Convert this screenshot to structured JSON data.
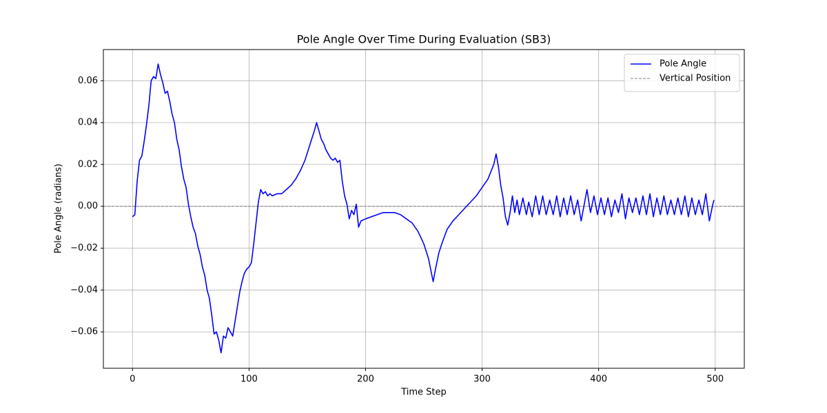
{
  "chart_data": {
    "type": "line",
    "title": "Pole Angle Over Time During Evaluation (SB3)",
    "x_label": "Time Step",
    "y_label": "Pole Angle (radians)",
    "x": [
      0,
      2,
      4,
      6,
      8,
      10,
      12,
      14,
      16,
      18,
      20,
      22,
      24,
      26,
      28,
      30,
      32,
      34,
      36,
      38,
      40,
      42,
      44,
      46,
      48,
      50,
      52,
      54,
      56,
      58,
      60,
      62,
      64,
      66,
      68,
      70,
      72,
      74,
      76,
      78,
      80,
      82,
      84,
      86,
      88,
      90,
      92,
      94,
      96,
      98,
      100,
      102,
      104,
      106,
      108,
      110,
      112,
      114,
      116,
      118,
      120,
      124,
      128,
      132,
      136,
      140,
      144,
      148,
      152,
      156,
      158,
      160,
      162,
      164,
      166,
      168,
      170,
      172,
      174,
      176,
      178,
      180,
      182,
      184,
      186,
      188,
      190,
      192,
      194,
      196,
      200,
      205,
      210,
      215,
      220,
      225,
      230,
      235,
      240,
      245,
      250,
      254,
      258,
      260,
      263,
      266,
      270,
      275,
      280,
      285,
      290,
      295,
      300,
      305,
      310,
      312,
      314,
      316,
      318,
      320,
      322,
      324,
      326,
      328,
      330,
      332,
      335,
      338,
      340,
      343,
      346,
      349,
      352,
      355,
      358,
      361,
      364,
      367,
      370,
      373,
      376,
      379,
      382,
      385,
      388,
      390,
      393,
      396,
      399,
      402,
      405,
      408,
      411,
      414,
      417,
      420,
      423,
      426,
      429,
      432,
      435,
      438,
      441,
      444,
      447,
      450,
      453,
      456,
      459,
      462,
      465,
      468,
      471,
      474,
      477,
      480,
      483,
      486,
      489,
      492,
      495,
      498,
      499
    ],
    "series": [
      {
        "name": "Pole Angle",
        "color": "#0000ff",
        "values": [
          -0.005,
          -0.004,
          0.012,
          0.022,
          0.024,
          0.031,
          0.039,
          0.048,
          0.06,
          0.062,
          0.061,
          0.068,
          0.063,
          0.059,
          0.054,
          0.055,
          0.05,
          0.044,
          0.04,
          0.032,
          0.027,
          0.019,
          0.013,
          0.009,
          0.001,
          -0.005,
          -0.01,
          -0.013,
          -0.019,
          -0.023,
          -0.029,
          -0.033,
          -0.04,
          -0.044,
          -0.052,
          -0.061,
          -0.06,
          -0.064,
          -0.07,
          -0.062,
          -0.063,
          -0.058,
          -0.06,
          -0.062,
          -0.055,
          -0.048,
          -0.041,
          -0.036,
          -0.032,
          -0.03,
          -0.029,
          -0.027,
          -0.018,
          -0.008,
          0.002,
          0.008,
          0.006,
          0.007,
          0.005,
          0.006,
          0.005,
          0.006,
          0.006,
          0.008,
          0.01,
          0.013,
          0.017,
          0.022,
          0.029,
          0.036,
          0.04,
          0.036,
          0.032,
          0.03,
          0.027,
          0.025,
          0.023,
          0.022,
          0.023,
          0.021,
          0.022,
          0.012,
          0.005,
          0.001,
          -0.006,
          -0.002,
          -0.004,
          0.001,
          -0.01,
          -0.007,
          -0.006,
          -0.005,
          -0.004,
          -0.003,
          -0.003,
          -0.003,
          -0.004,
          -0.006,
          -0.008,
          -0.012,
          -0.018,
          -0.025,
          -0.036,
          -0.03,
          -0.022,
          -0.017,
          -0.011,
          -0.007,
          -0.004,
          -0.001,
          0.002,
          0.005,
          0.009,
          0.013,
          0.02,
          0.025,
          0.019,
          0.01,
          0.004,
          -0.005,
          -0.009,
          -0.003,
          0.005,
          -0.003,
          0.003,
          -0.004,
          0.004,
          -0.004,
          0.002,
          -0.005,
          0.005,
          -0.004,
          0.005,
          -0.004,
          0.003,
          -0.004,
          0.005,
          -0.005,
          0.004,
          -0.004,
          0.005,
          -0.004,
          0.003,
          -0.007,
          0.002,
          0.008,
          -0.003,
          0.005,
          -0.004,
          0.004,
          -0.004,
          0.004,
          -0.005,
          0.003,
          -0.003,
          0.006,
          -0.006,
          0.004,
          -0.003,
          0.004,
          -0.004,
          0.005,
          -0.004,
          0.006,
          -0.005,
          0.004,
          -0.004,
          0.005,
          -0.004,
          0.003,
          -0.004,
          0.004,
          -0.004,
          0.005,
          -0.005,
          0.004,
          -0.004,
          0.003,
          -0.004,
          0.006,
          -0.007,
          0.001,
          0.003
        ]
      }
    ],
    "reference_line": {
      "name": "Vertical Position",
      "value": 0,
      "color": "#808080"
    },
    "xlim": [
      -25,
      525
    ],
    "xticks": [
      0,
      100,
      200,
      300,
      400,
      500
    ],
    "ylim": [
      -0.0774,
      0.0749
    ],
    "yticks": [
      {
        "value": -0.06,
        "label": "−0.06"
      },
      {
        "value": -0.04,
        "label": "−0.04"
      },
      {
        "value": -0.02,
        "label": "−0.02"
      },
      {
        "value": 0,
        "label": "0.00"
      },
      {
        "value": 0.02,
        "label": "0.02"
      },
      {
        "value": 0.04,
        "label": "0.04"
      },
      {
        "value": 0.06,
        "label": "0.06"
      }
    ],
    "grid": true,
    "legend": "upper right"
  }
}
